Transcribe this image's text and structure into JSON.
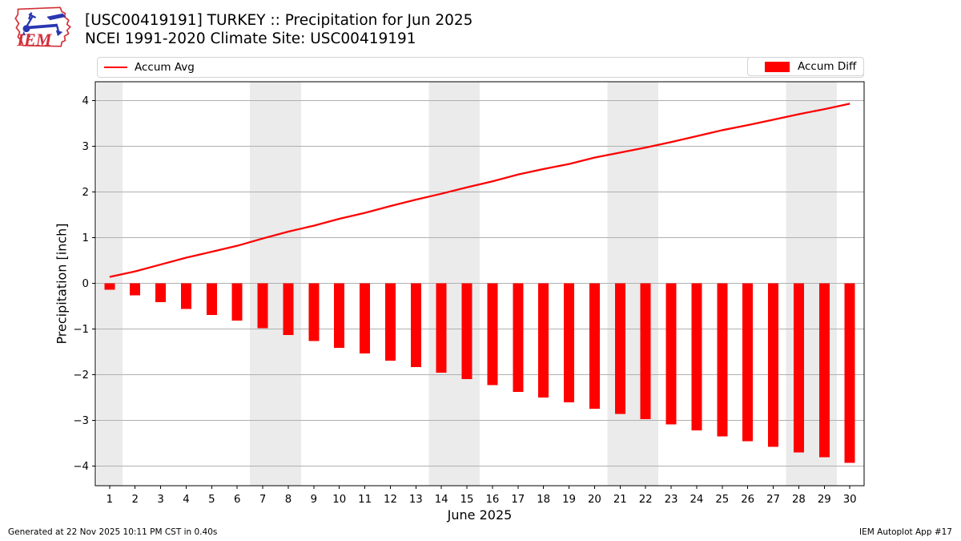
{
  "header": {
    "title_line1": "[USC00419191] TURKEY :: Precipitation for Jun 2025",
    "title_line2": "NCEI 1991-2020 Climate Site: USC00419191",
    "logo_text": "IEM"
  },
  "legend": {
    "accum_avg_label": "Accum Avg",
    "accum_diff_label": "Accum Diff"
  },
  "footer": {
    "left": "Generated at 22 Nov 2025 10:11 PM CST in 0.40s",
    "right": "IEM Autoplot App #17"
  },
  "chart_data": {
    "type": "bar",
    "title": "[USC00419191] TURKEY :: Precipitation for Jun 2025",
    "xlabel": "June 2025",
    "ylabel": "Precipitation [inch]",
    "x": [
      1,
      2,
      3,
      4,
      5,
      6,
      7,
      8,
      9,
      10,
      11,
      12,
      13,
      14,
      15,
      16,
      17,
      18,
      19,
      20,
      21,
      22,
      23,
      24,
      25,
      26,
      27,
      28,
      29,
      30
    ],
    "series": [
      {
        "name": "Accum Avg",
        "type": "line",
        "color": "#fe0000",
        "values": [
          0.14,
          0.26,
          0.41,
          0.56,
          0.69,
          0.82,
          0.98,
          1.13,
          1.26,
          1.41,
          1.54,
          1.69,
          1.83,
          1.96,
          2.1,
          2.23,
          2.38,
          2.5,
          2.61,
          2.75,
          2.86,
          2.97,
          3.09,
          3.22,
          3.35,
          3.46,
          3.58,
          3.7,
          3.81,
          3.93
        ]
      },
      {
        "name": "Accum Diff",
        "type": "bar",
        "color": "#fe0000",
        "values": [
          -0.14,
          -0.26,
          -0.41,
          -0.56,
          -0.69,
          -0.82,
          -0.98,
          -1.13,
          -1.26,
          -1.41,
          -1.54,
          -1.69,
          -1.83,
          -1.96,
          -2.1,
          -2.23,
          -2.38,
          -2.5,
          -2.61,
          -2.75,
          -2.86,
          -2.97,
          -3.09,
          -3.22,
          -3.35,
          -3.46,
          -3.58,
          -3.7,
          -3.81,
          -3.93
        ]
      }
    ],
    "xlim": [
      0.44,
      30.56
    ],
    "ylim": [
      -4.43,
      4.41
    ],
    "yticks": [
      -4,
      -3,
      -2,
      -1,
      0,
      1,
      2,
      3,
      4
    ],
    "weekend_bands": [
      [
        0.5,
        1.5
      ],
      [
        6.5,
        8.5
      ],
      [
        13.5,
        15.5
      ],
      [
        20.5,
        22.5
      ],
      [
        27.5,
        29.5
      ]
    ],
    "grid": "horizontal-only",
    "legend_position": "top",
    "colors": {
      "series": "#fe0000",
      "weekend_band": "#ebebeb",
      "gridline": "#b0b0b0",
      "spine": "#000000",
      "background": "#ffffff"
    }
  }
}
